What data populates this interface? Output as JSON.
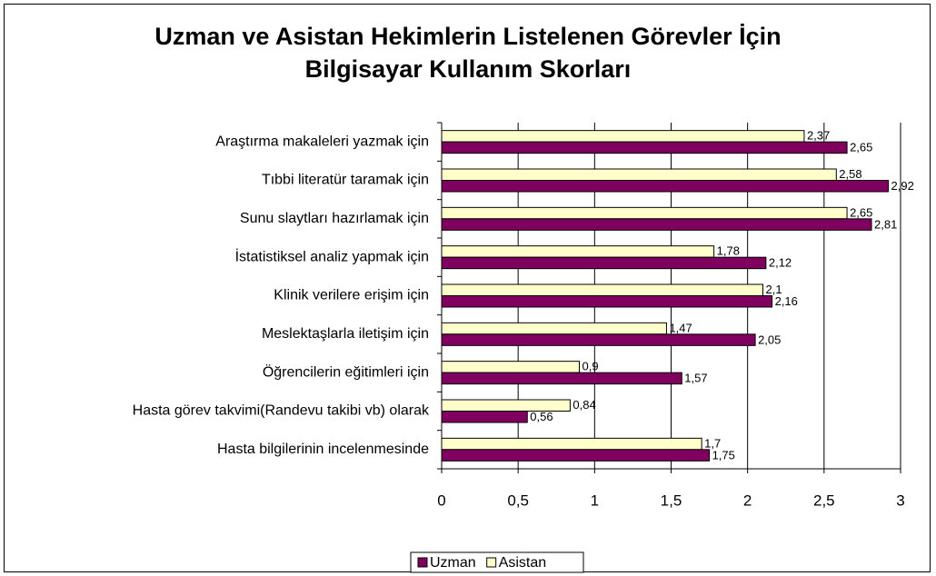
{
  "chart_data": {
    "type": "hbar",
    "title": "Uzman ve Asistan Hekimlerin Listelenen Görevler İçin Bilgisayar Kullanım Skorları",
    "categories": [
      "Araştırma makaleleri yazmak için",
      "Tıbbi literatür taramak için",
      "Sunu slaytları hazırlamak için",
      "İstatistiksel analiz yapmak için",
      "Klinik verilere erişim için",
      "Meslektaşlarla iletişim için",
      "Öğrencilerin eğitimleri için",
      "Hasta görev takvimi(Randevu takibi vb) olarak",
      "Hasta bilgilerinin incelenmesinde"
    ],
    "series": [
      {
        "name": "Uzman",
        "color": "#800060",
        "values": [
          2.65,
          2.92,
          2.81,
          2.12,
          2.16,
          2.05,
          1.57,
          0.56,
          1.75
        ],
        "value_labels": [
          "2,65",
          "2,92",
          "2,81",
          "2,12",
          "2,16",
          "2,05",
          "1,57",
          "0,56",
          "1,75"
        ]
      },
      {
        "name": "Asistan",
        "color": "#FFFFCC",
        "values": [
          2.37,
          2.58,
          2.65,
          1.78,
          2.1,
          1.47,
          0.9,
          0.84,
          1.7
        ],
        "value_labels": [
          "2,37",
          "2,58",
          "2,65",
          "1,78",
          "2,1",
          "1,47",
          "0,9",
          "0,84",
          "1,7"
        ]
      }
    ],
    "xlim": [
      0,
      3
    ],
    "xticks": [
      0,
      {
        "value": 0.5,
        "label": "0,5"
      },
      1,
      {
        "value": 1.5,
        "label": "1,5"
      },
      2,
      {
        "value": 2.5,
        "label": "2,5"
      },
      3
    ],
    "grid": true,
    "legend": "bottom"
  }
}
